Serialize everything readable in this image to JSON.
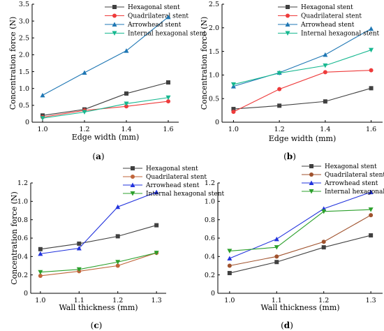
{
  "chart_data": [
    {
      "type": "line",
      "panel_label": "a",
      "xlabel": "Edge width (mm)",
      "ylabel": "Concentration force (N)",
      "x": [
        1.0,
        1.2,
        1.4,
        1.6
      ],
      "x_tick_labels": [
        "1.0",
        "1.2",
        "1.4",
        "1.6"
      ],
      "xlim": [
        0.95,
        1.65
      ],
      "ylim": [
        0,
        3.5
      ],
      "y_ticks": [
        0,
        0.5,
        1,
        1.5,
        2,
        2.5,
        3,
        3.5
      ],
      "y_tick_labels": [
        "0",
        "0.5",
        "1.0",
        "1.5",
        "2.0",
        "2.5",
        "3.0",
        "3.5"
      ],
      "legend_position": "top-right",
      "series": [
        {
          "name": "Hexagonal stent",
          "values": [
            0.2,
            0.38,
            0.85,
            1.18
          ],
          "color": "#404040",
          "marker": "square"
        },
        {
          "name": "Quadrilateral stent",
          "values": [
            0.15,
            0.35,
            0.47,
            0.62
          ],
          "color": "#ee3b3b",
          "marker": "circle"
        },
        {
          "name": "Arrowhead stent",
          "values": [
            0.8,
            1.47,
            2.12,
            3.12
          ],
          "color": "#1f77b4",
          "marker": "triangle-up"
        },
        {
          "name": "Internal hexagonal stent",
          "values": [
            0.12,
            0.3,
            0.55,
            0.73
          ],
          "color": "#17b890",
          "marker": "triangle-down"
        }
      ]
    },
    {
      "type": "line",
      "panel_label": "b",
      "xlabel": "Edge width (mm)",
      "ylabel": "Concentration force (N)",
      "x": [
        1.0,
        1.2,
        1.4,
        1.6
      ],
      "x_tick_labels": [
        "1.0",
        "1.2",
        "1.4",
        "1.6"
      ],
      "xlim": [
        0.95,
        1.65
      ],
      "ylim": [
        0,
        2.5
      ],
      "y_ticks": [
        0,
        0.5,
        1,
        1.5,
        2,
        2.5
      ],
      "y_tick_labels": [
        "0",
        "0.5",
        "1.0",
        "1.5",
        "2.0",
        "2.5"
      ],
      "legend_position": "top-right",
      "series": [
        {
          "name": "Hexagonal stent",
          "values": [
            0.28,
            0.35,
            0.44,
            0.72
          ],
          "color": "#404040",
          "marker": "square"
        },
        {
          "name": "Quadrilateral stent",
          "values": [
            0.22,
            0.7,
            1.06,
            1.1
          ],
          "color": "#ee3b3b",
          "marker": "circle"
        },
        {
          "name": "Arrowhead stent",
          "values": [
            0.76,
            1.05,
            1.43,
            1.98
          ],
          "color": "#1f77b4",
          "marker": "triangle-up"
        },
        {
          "name": "Internal hexagonal stent",
          "values": [
            0.8,
            1.04,
            1.2,
            1.53
          ],
          "color": "#17b890",
          "marker": "triangle-down"
        }
      ]
    },
    {
      "type": "line",
      "panel_label": "c",
      "xlabel": "Wall thickness (mm)",
      "ylabel": "Concentration force (N)",
      "x": [
        1.0,
        1.1,
        1.2,
        1.3
      ],
      "x_tick_labels": [
        "1.0",
        "1.1",
        "1.2",
        "1.3"
      ],
      "xlim": [
        0.975,
        1.325
      ],
      "ylim": [
        0,
        1.2
      ],
      "y_ticks": [
        0,
        0.2,
        0.4,
        0.6,
        0.8,
        1.0,
        1.2
      ],
      "y_tick_labels": [
        "0",
        "0.2",
        "0.4",
        "0.6",
        "0.8",
        "1.0",
        "1.2"
      ],
      "legend_position": "top-right",
      "series": [
        {
          "name": "Hexagonal stent",
          "values": [
            0.48,
            0.54,
            0.62,
            0.74
          ],
          "color": "#404040",
          "marker": "square"
        },
        {
          "name": "Quadrilateral stent",
          "values": [
            0.19,
            0.24,
            0.3,
            0.44
          ],
          "color": "#c0653a",
          "marker": "circle"
        },
        {
          "name": "Arrowhead stent",
          "values": [
            0.43,
            0.49,
            0.94,
            1.1
          ],
          "color": "#2233dd",
          "marker": "triangle-up"
        },
        {
          "name": "Internal hexagonal stent",
          "values": [
            0.23,
            0.26,
            0.34,
            0.44
          ],
          "color": "#2ca02c",
          "marker": "triangle-down"
        }
      ]
    },
    {
      "type": "line",
      "panel_label": "d",
      "xlabel": "Wall thickness (mm)",
      "ylabel": "",
      "x": [
        1.0,
        1.1,
        1.2,
        1.3
      ],
      "x_tick_labels": [
        "1.0",
        "1.1",
        "1.2",
        "1.3"
      ],
      "xlim": [
        0.975,
        1.325
      ],
      "ylim": [
        0,
        1.2
      ],
      "y_ticks": [
        0,
        0.2,
        0.4,
        0.6,
        0.8,
        1.0,
        1.2
      ],
      "y_tick_labels": [
        "0",
        "0.2",
        "0.4",
        "0.6",
        "0.8",
        "1.0",
        "1.2"
      ],
      "legend_position": "top-right",
      "series": [
        {
          "name": "Hexagonal stent",
          "values": [
            0.22,
            0.34,
            0.5,
            0.63
          ],
          "color": "#404040",
          "marker": "square"
        },
        {
          "name": "Quadrilateral stent",
          "values": [
            0.3,
            0.4,
            0.56,
            0.85
          ],
          "color": "#a0522d",
          "marker": "circle"
        },
        {
          "name": "Arrowhead stent",
          "values": [
            0.38,
            0.59,
            0.92,
            1.1
          ],
          "color": "#2233dd",
          "marker": "triangle-up"
        },
        {
          "name": "Internal hexagonal stent",
          "values": [
            0.46,
            0.5,
            0.89,
            0.91
          ],
          "color": "#2ca02c",
          "marker": "triangle-down"
        }
      ]
    }
  ]
}
